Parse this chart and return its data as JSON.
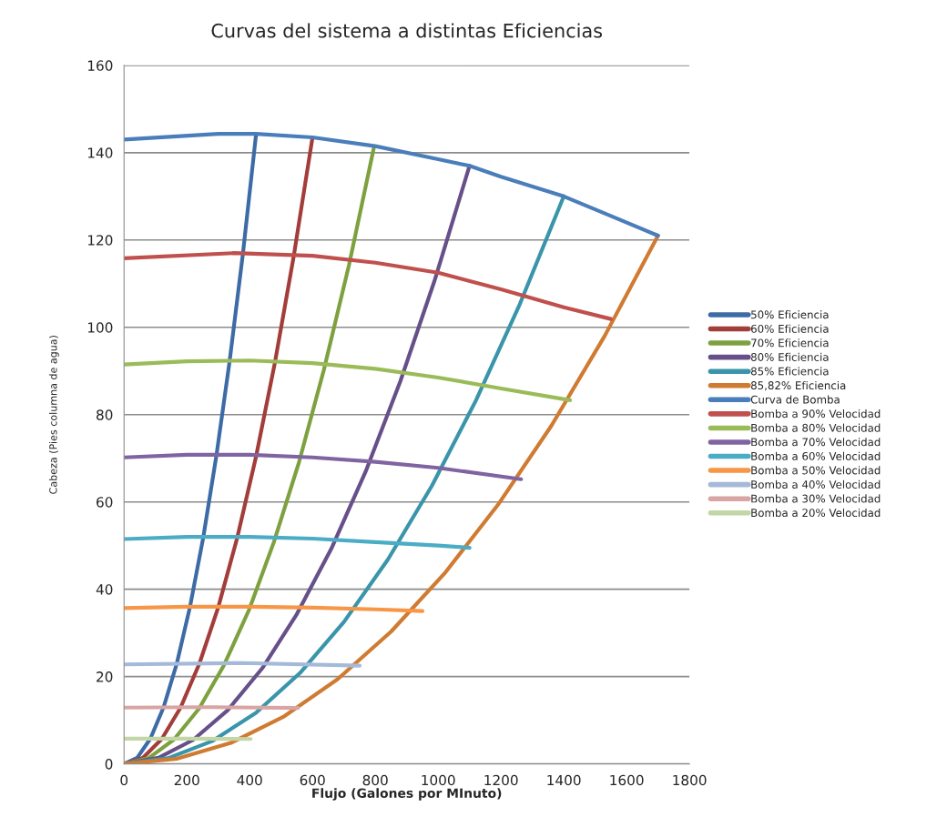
{
  "chart_data": {
    "type": "line",
    "title": "Curvas del sistema a distintas Eficiencias",
    "xlabel": "Flujo (Galones por MInuto)",
    "ylabel": "Cabeza (Pies columna de agua)",
    "xlim": [
      0,
      1800
    ],
    "xticks": [
      0,
      200,
      400,
      600,
      800,
      1000,
      1200,
      1400,
      1600,
      1800
    ],
    "ylim": [
      0,
      160
    ],
    "yticks": [
      0,
      20,
      40,
      60,
      80,
      100,
      120,
      140,
      160
    ],
    "grid": "y",
    "legend": "right",
    "marker": "none",
    "line_style": "solid",
    "series": [
      {
        "name": "50% Eficiencia",
        "color": "#3c6ba5",
        "x": [
          0,
          42,
          84,
          126,
          168,
          210,
          252,
          294,
          336,
          378,
          420
        ],
        "values": [
          0,
          1.4,
          5.8,
          13,
          23,
          36,
          51.8,
          70.6,
          92.2,
          116.6,
          144
        ]
      },
      {
        "name": "60% Eficiencia",
        "color": "#a33d3a",
        "x": [
          0,
          60,
          120,
          180,
          240,
          300,
          360,
          420,
          480,
          540,
          600
        ],
        "values": [
          0,
          1.4,
          5.7,
          12.9,
          23,
          35.9,
          51.7,
          70.3,
          91.8,
          116.2,
          143.5
        ]
      },
      {
        "name": "70% Eficiencia",
        "color": "#7ea140",
        "x": [
          0,
          80,
          159,
          239,
          318,
          398,
          477,
          557,
          636,
          716,
          795
        ],
        "values": [
          0,
          1.4,
          5.6,
          12.7,
          22.6,
          35.3,
          50.8,
          69.1,
          90.2,
          114.2,
          141
        ]
      },
      {
        "name": "80% Eficiencia",
        "color": "#67508a",
        "x": [
          0,
          110,
          220,
          330,
          440,
          550,
          660,
          770,
          880,
          990,
          1100
        ],
        "values": [
          0,
          1.4,
          5.5,
          12.3,
          21.9,
          34.3,
          49.3,
          67.1,
          87.7,
          111,
          137
        ]
      },
      {
        "name": "85% Eficiencia",
        "color": "#3a95ab",
        "x": [
          0,
          140,
          280,
          420,
          560,
          700,
          840,
          980,
          1120,
          1260,
          1400
        ],
        "values": [
          0,
          1.3,
          5.2,
          11.7,
          20.8,
          32.5,
          46.8,
          63.7,
          83.2,
          105.3,
          130
        ]
      },
      {
        "name": "85,82% Eficiencia",
        "color": "#d07b32",
        "x": [
          0,
          170,
          340,
          510,
          680,
          850,
          1020,
          1190,
          1360,
          1530,
          1700
        ],
        "values": [
          0,
          1.2,
          4.8,
          10.9,
          19.4,
          30.3,
          43.6,
          59.3,
          77.4,
          98,
          121
        ]
      },
      {
        "name": "Curva de Bomba",
        "color": "#4a7ebb",
        "x": [
          0,
          300,
          420,
          600,
          800,
          1000,
          1100,
          1200,
          1400,
          1550,
          1700
        ],
        "values": [
          143,
          144.3,
          144.3,
          143.5,
          141.5,
          138.5,
          137,
          134.5,
          130,
          125.5,
          121
        ]
      },
      {
        "name": "Bomba a 90% Velocidad",
        "color": "#c0504d",
        "x": [
          0,
          350,
          600,
          800,
          1000,
          1200,
          1400,
          1550
        ],
        "values": [
          115.8,
          117,
          116.4,
          114.8,
          112.5,
          108.7,
          104.6,
          101.9
        ]
      },
      {
        "name": "Bomba a 80% Velocidad",
        "color": "#9bbb59",
        "x": [
          0,
          200,
          400,
          600,
          800,
          1000,
          1200,
          1420
        ],
        "values": [
          91.5,
          92.2,
          92.4,
          91.8,
          90.5,
          88.5,
          86,
          83.3
        ]
      },
      {
        "name": "Bomba a 70% Velocidad",
        "color": "#8064a2",
        "x": [
          0,
          200,
          400,
          600,
          800,
          1000,
          1264
        ],
        "values": [
          70.2,
          70.8,
          70.8,
          70.2,
          69.2,
          67.8,
          65.2
        ]
      },
      {
        "name": "Bomba a 60% Velocidad",
        "color": "#4bacc6",
        "x": [
          0,
          200,
          400,
          600,
          800,
          1000,
          1100
        ],
        "values": [
          51.5,
          52,
          52,
          51.6,
          50.8,
          50,
          49.5
        ]
      },
      {
        "name": "Bomba a 50% Velocidad",
        "color": "#f79646",
        "x": [
          0,
          200,
          400,
          600,
          800,
          950
        ],
        "values": [
          35.7,
          36,
          36,
          35.8,
          35.4,
          35
        ]
      },
      {
        "name": "Bomba a 40% Velocidad",
        "color": "#a5b9d9",
        "x": [
          0,
          375,
          750
        ],
        "values": [
          22.8,
          23.1,
          22.5
        ]
      },
      {
        "name": "Bomba a 30% Velocidad",
        "color": "#d9a5a4",
        "x": [
          0,
          277,
          554
        ],
        "values": [
          12.9,
          13,
          12.8
        ]
      },
      {
        "name": "Bomba a 20% Velocidad",
        "color": "#c3d6a5",
        "x": [
          0,
          200,
          403
        ],
        "values": [
          5.8,
          5.8,
          5.7
        ]
      }
    ]
  }
}
